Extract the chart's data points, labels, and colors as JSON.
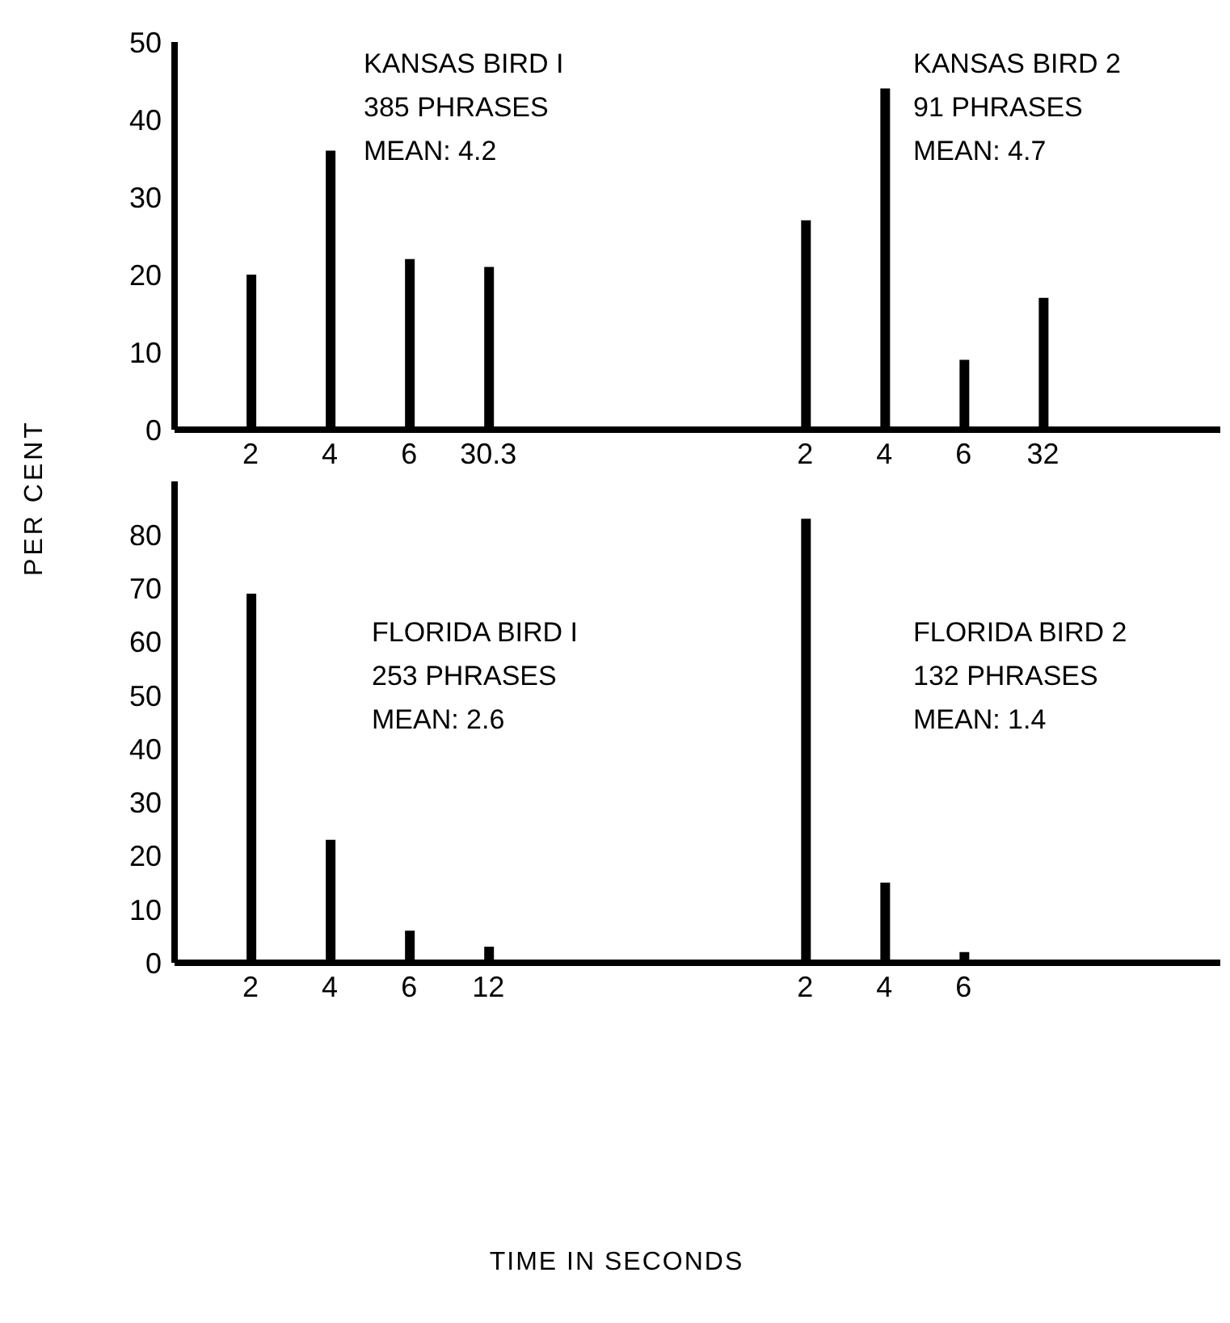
{
  "chart_data": [
    {
      "type": "bar",
      "categories": [
        "2",
        "4",
        "6",
        "30.3",
        null,
        null,
        null,
        "2",
        "4",
        "6",
        "32"
      ],
      "values": [
        20,
        36,
        22,
        21,
        null,
        null,
        null,
        27,
        44,
        9,
        17
      ],
      "color": "#000000",
      "ylim": [
        0,
        50
      ],
      "yticks": [
        0,
        10,
        20,
        30,
        40,
        50
      ],
      "grid": false,
      "legend": false,
      "annotations": [
        "KANSAS BIRD I",
        "385 PHRASES",
        "MEAN: 4.2",
        "KANSAS BIRD 2",
        "91 PHRASES",
        "MEAN: 4.7"
      ]
    },
    {
      "type": "bar",
      "categories": [
        "2",
        "4",
        "6",
        "12",
        null,
        null,
        null,
        "2",
        "4",
        "6"
      ],
      "values": [
        69,
        23,
        6,
        3,
        null,
        null,
        null,
        83,
        15,
        2
      ],
      "color": "#000000",
      "ylim": [
        0,
        90
      ],
      "yticks": [
        0,
        10,
        20,
        30,
        40,
        50,
        60,
        70,
        80
      ],
      "grid": false,
      "legend": false,
      "xlabel": "TIME IN SECONDS",
      "ylabel": "PER CENT",
      "annotations": [
        "FLORIDA BIRD I",
        "253 PHRASES",
        "MEAN: 2.6",
        "FLORIDA BIRD 2",
        "132 PHRASES",
        "MEAN: 1.4"
      ]
    }
  ]
}
